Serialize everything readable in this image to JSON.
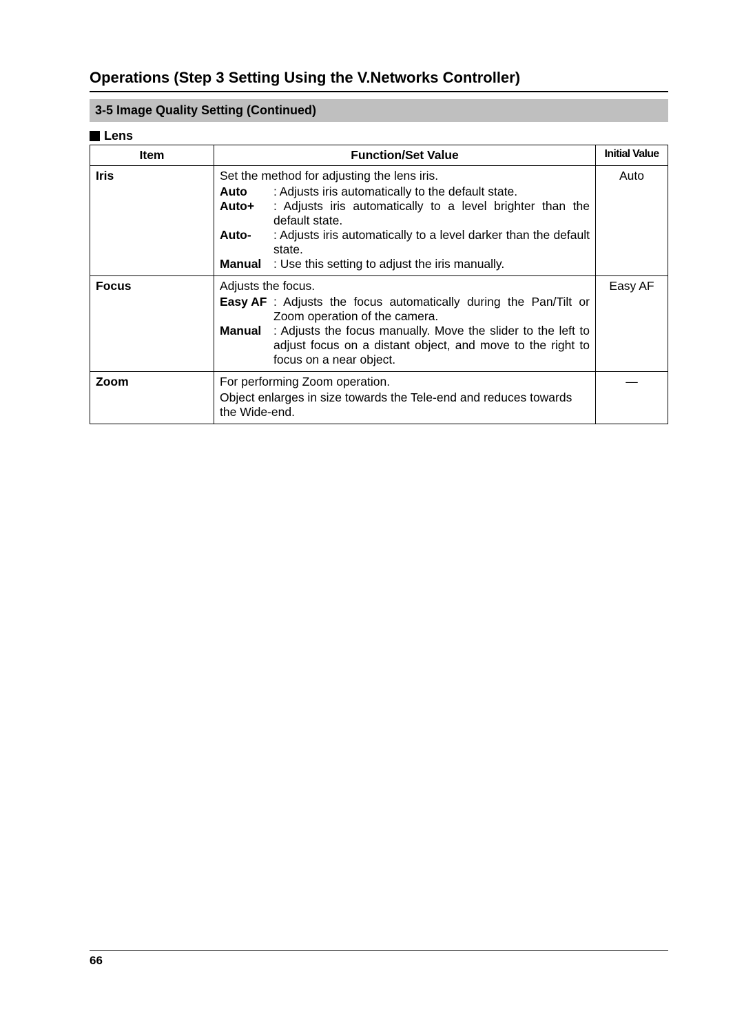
{
  "heading": "Operations (Step 3 Setting Using the V.Networks Controller)",
  "subheading": "3-5 Image Quality Setting (Continued)",
  "section_label": "Lens",
  "table": {
    "headers": {
      "item": "Item",
      "func": "Function/Set Value",
      "init": "Initial Value"
    },
    "rows": [
      {
        "item": "Iris",
        "intro": "Set the method for adjusting the lens iris.",
        "defs": [
          {
            "label": "Auto",
            "text": ": Adjusts iris automatically to the default state."
          },
          {
            "label": "Auto+",
            "text": ": Adjusts iris automatically to a level brighter than the default state."
          },
          {
            "label": "Auto-",
            "text": ": Adjusts iris automatically to a level darker than the default state."
          },
          {
            "label": "Manual",
            "text": ": Use this setting to adjust the iris manually."
          }
        ],
        "initial": "Auto"
      },
      {
        "item": "Focus",
        "intro": "Adjusts the focus.",
        "defs": [
          {
            "label": "Easy AF",
            "text": ": Adjusts the focus automatically during the Pan/Tilt or Zoom operation of the camera."
          },
          {
            "label": "Manual",
            "text": ": Adjusts the focus manually. Move the slider to the left to adjust focus on a distant object, and move to the right to focus on a near object."
          }
        ],
        "initial": "Easy AF"
      },
      {
        "item": "Zoom",
        "intro": "For performing Zoom operation.",
        "body": "Object enlarges in size towards the Tele-end and reduces towards the Wide-end.",
        "initial": "—"
      }
    ]
  },
  "page_number": "66",
  "colors": {
    "subbar_bg": "#bfbfbf",
    "text": "#000000",
    "page_bg": "#ffffff"
  },
  "typography": {
    "heading_size_pt": 16,
    "body_size_pt": 13,
    "font_family": "Arial"
  }
}
